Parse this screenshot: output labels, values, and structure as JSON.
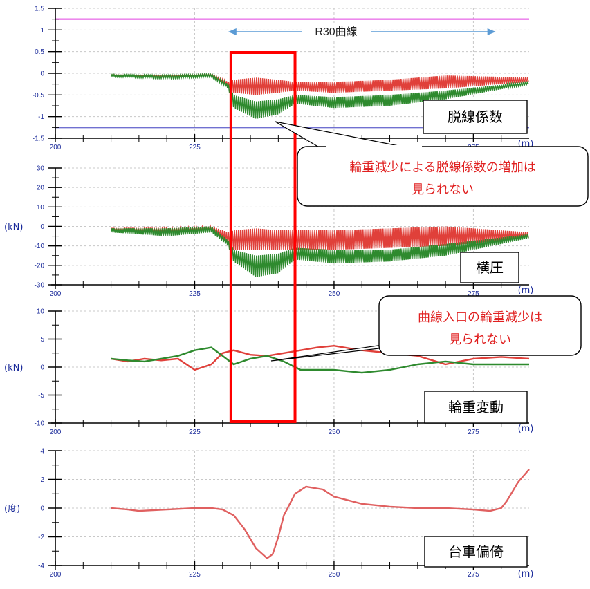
{
  "span": {
    "label": "R30曲線",
    "x_from": 231,
    "x_to": 279
  },
  "highlight": {
    "x_from": 231.5,
    "x_to": 243.0,
    "color": "#ff0000"
  },
  "callouts": [
    {
      "lines": [
        "輪重減少による脱線係数の増加は",
        "見られない"
      ]
    },
    {
      "lines": [
        "曲線入口の輪重減少は",
        "見られない"
      ]
    }
  ],
  "chart_data": [
    {
      "type": "line",
      "title": "脱線係数",
      "xlabel": "(m)",
      "ylabel": "",
      "xlim": [
        200,
        285
      ],
      "ylim": [
        -1.5,
        1.5
      ],
      "x_ticks": [
        "200",
        "225",
        "250",
        "275"
      ],
      "y_ticks": [
        "1.5",
        "1",
        "0.5",
        "0",
        "-0.5",
        "-1",
        "-1.5"
      ],
      "reference_lines": [
        {
          "y": 1.25,
          "color": "#e040e0"
        },
        {
          "y": -1.25,
          "color": "#7070d0"
        }
      ],
      "series": [
        {
          "color": "#e0403a",
          "band": true,
          "x": [
            210,
            220,
            228,
            231,
            232,
            236,
            240,
            243,
            250,
            260,
            270,
            285
          ],
          "lo": [
            -0.05,
            -0.08,
            -0.05,
            -0.3,
            -0.45,
            -0.5,
            -0.45,
            -0.4,
            -0.45,
            -0.4,
            -0.35,
            -0.2
          ],
          "hi": [
            -0.03,
            -0.05,
            -0.02,
            -0.2,
            -0.15,
            -0.1,
            -0.15,
            -0.2,
            -0.2,
            -0.15,
            -0.05,
            -0.1
          ]
        },
        {
          "color": "#2e8a2e",
          "band": true,
          "x": [
            210,
            220,
            228,
            231,
            232,
            236,
            240,
            243,
            250,
            260,
            270,
            285
          ],
          "lo": [
            -0.08,
            -0.12,
            -0.08,
            -0.35,
            -0.8,
            -1.05,
            -0.95,
            -0.7,
            -0.8,
            -0.75,
            -0.6,
            -0.25
          ],
          "hi": [
            -0.03,
            -0.05,
            -0.02,
            -0.25,
            -0.5,
            -0.65,
            -0.6,
            -0.5,
            -0.55,
            -0.5,
            -0.4,
            -0.2
          ]
        }
      ]
    },
    {
      "type": "line",
      "title": "横圧",
      "xlabel": "(m)",
      "ylabel": "(kN)",
      "xlim": [
        200,
        285
      ],
      "ylim": [
        -30,
        30
      ],
      "x_ticks": [
        "200",
        "225",
        "250",
        "275"
      ],
      "y_ticks": [
        "30",
        "20",
        "10",
        "0",
        "-10",
        "-20",
        "-30"
      ],
      "series": [
        {
          "color": "#e0403a",
          "band": true,
          "x": [
            210,
            220,
            228,
            231,
            232,
            236,
            240,
            243,
            250,
            260,
            270,
            285
          ],
          "lo": [
            -2,
            -3,
            -2,
            -9,
            -12,
            -12,
            -12,
            -12,
            -12,
            -11,
            -10,
            -6
          ],
          "hi": [
            -1,
            -1,
            0,
            -3,
            -2,
            -1,
            -2,
            -2,
            -2,
            -1,
            0,
            -3
          ]
        },
        {
          "color": "#2e8a2e",
          "band": true,
          "x": [
            210,
            220,
            228,
            231,
            232,
            236,
            240,
            243,
            250,
            260,
            270,
            285
          ],
          "lo": [
            -3,
            -5,
            -3,
            -10,
            -18,
            -26,
            -24,
            -17,
            -19,
            -18,
            -15,
            -6
          ],
          "hi": [
            -1,
            -1,
            0,
            -7,
            -12,
            -15,
            -14,
            -11,
            -12,
            -12,
            -9,
            -4
          ]
        }
      ]
    },
    {
      "type": "line",
      "title": "輪重変動",
      "xlabel": "(m)",
      "ylabel": "(kN)",
      "xlim": [
        200,
        285
      ],
      "ylim": [
        -10,
        10
      ],
      "x_ticks": [
        "200",
        "225",
        "250",
        "275"
      ],
      "y_ticks": [
        "10",
        "5",
        "0",
        "-5",
        "-10"
      ],
      "series": [
        {
          "color": "#e0403a",
          "band": false,
          "x": [
            210,
            213,
            216,
            219,
            222,
            225,
            228,
            230,
            232,
            235,
            238,
            241,
            244,
            247,
            250,
            255,
            260,
            265,
            270,
            275,
            280,
            285
          ],
          "y": [
            1.5,
            1.0,
            1.5,
            1.2,
            1.5,
            -0.5,
            0.5,
            2.5,
            3.0,
            2.2,
            2.0,
            2.5,
            3.0,
            3.5,
            3.8,
            3.0,
            2.5,
            2.0,
            0.5,
            1.5,
            1.8,
            1.5
          ]
        },
        {
          "color": "#2e8a2e",
          "band": false,
          "x": [
            210,
            213,
            216,
            219,
            222,
            225,
            228,
            230,
            232,
            235,
            238,
            241,
            244,
            247,
            250,
            255,
            260,
            265,
            270,
            275,
            280,
            285
          ],
          "y": [
            1.5,
            1.2,
            1.0,
            1.5,
            2.0,
            3.0,
            3.5,
            2.0,
            0.5,
            1.5,
            2.0,
            1.0,
            -0.5,
            -0.5,
            -0.5,
            -1.0,
            -0.5,
            0.5,
            1.0,
            0.5,
            0.5,
            0.5
          ]
        }
      ]
    },
    {
      "type": "line",
      "title": "台車偏倚",
      "xlabel": "(m)",
      "ylabel": "(度)",
      "xlim": [
        200,
        285
      ],
      "ylim": [
        -4,
        4
      ],
      "x_ticks": [
        "200",
        "225",
        "250",
        "275"
      ],
      "y_ticks": [
        "4",
        "2",
        "0",
        "-2",
        "-4"
      ],
      "series": [
        {
          "color": "#e06060",
          "band": false,
          "x": [
            210,
            213,
            215,
            220,
            225,
            228,
            230,
            232,
            234,
            236,
            238,
            239,
            240,
            241,
            243,
            245,
            248,
            250,
            255,
            260,
            265,
            270,
            275,
            278,
            280,
            281,
            283,
            285
          ],
          "y": [
            0.0,
            -0.1,
            -0.2,
            -0.1,
            0.0,
            0.0,
            -0.1,
            -0.5,
            -1.5,
            -2.8,
            -3.5,
            -3.2,
            -2.0,
            -0.5,
            1.0,
            1.5,
            1.3,
            0.8,
            0.3,
            0.1,
            0.0,
            0.0,
            -0.1,
            -0.2,
            0.0,
            0.5,
            1.8,
            2.7
          ]
        }
      ]
    }
  ]
}
